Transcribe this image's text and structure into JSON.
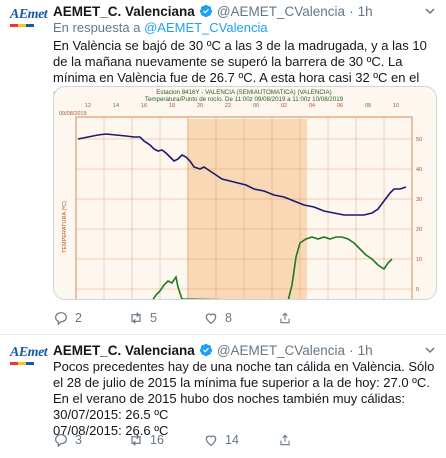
{
  "tweets": [
    {
      "author": {
        "name": "AEMET_C. Valenciana",
        "handle": "@AEMET_CValencia",
        "time": "1h",
        "avatar_text": "AEmet"
      },
      "reply_prefix": "En respuesta a",
      "reply_to": "@AEMET_CValencia",
      "text": "En València se bajó de 30 ºC a las 3 de la madrugada, y a las 10 de la mañana nuevamente se superó la barrera de 30 ºC. La mínima en València fue de 26.7 ºC. A esta hora casi 32 ºC en el centro de la ciudad.",
      "chart_image": {
        "header_line1": "Estacion 8416Y - VALENCIA (SEMIAUTOMATICA) (VALENCIA)",
        "header_line2": "Temperatura/Punto de rocío. De 11:00z 09/08/2019 a 11:00z 10/08/2019",
        "date_label": "09/08/2019",
        "y_axis_label": "TEMPERATURA (ºC)",
        "top_ticks": [
          "12",
          "14",
          "16",
          "18",
          "20",
          "22",
          "00",
          "02",
          "04",
          "06",
          "08",
          "10"
        ],
        "right_ticks": [
          "50",
          "40",
          "30",
          "20",
          "10",
          "0"
        ]
      },
      "actions": {
        "replies": "2",
        "retweets": "5",
        "likes": "8"
      }
    },
    {
      "author": {
        "name": "AEMET_C. Valenciana",
        "handle": "@AEMET_CValencia",
        "time": "1h",
        "avatar_text": "AEmet"
      },
      "text_lines": [
        "Pocos precedentes hay de una noche tan cálida en València. Sólo el 28 de julio de 2015 la mínima fue superior a la de hoy: 27.0 ºC.",
        "En el verano de 2015 hubo dos noches también muy cálidas:",
        "30/07/2015: 26.5 ºC",
        "07/08/2015: 26.6 ºC"
      ],
      "actions": {
        "replies": "3",
        "retweets": "16",
        "likes": "14"
      }
    }
  ],
  "colors": {
    "accent": "#1da1f2",
    "muted": "#657786",
    "temperature_line": "#1c1a6e",
    "dewpoint_line": "#1f7a1f",
    "chart_grid": "#e8a070",
    "night_band": "#f6cfa6"
  }
}
